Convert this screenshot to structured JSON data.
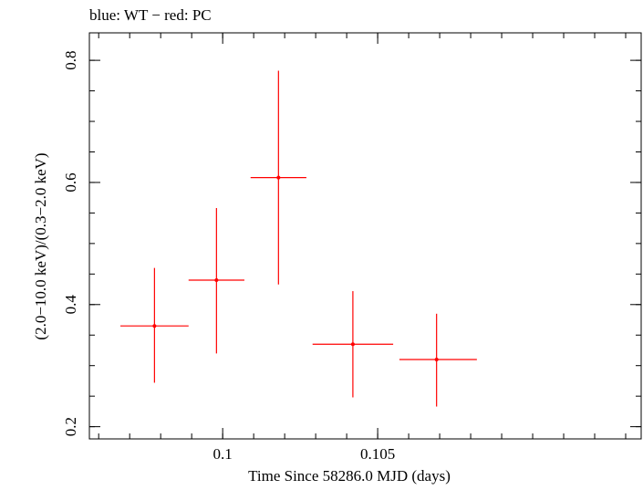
{
  "chart_data": {
    "type": "scatter",
    "title": "blue: WT − red: PC",
    "xlabel": "Time Since 58286.0 MJD (days)",
    "ylabel": "(2.0−10.0 keV)/(0.3−2.0 keV)",
    "xlim": [
      0.0957,
      0.1135
    ],
    "ylim": [
      0.18,
      0.845
    ],
    "x_ticks": [
      {
        "value": 0.1,
        "label": "0.1"
      },
      {
        "value": 0.105,
        "label": "0.105"
      }
    ],
    "y_ticks": [
      {
        "value": 0.2,
        "label": "0.2"
      },
      {
        "value": 0.4,
        "label": "0.4"
      },
      {
        "value": 0.6,
        "label": "0.6"
      },
      {
        "value": 0.8,
        "label": "0.8"
      }
    ],
    "x_minor_step": 0.001,
    "y_minor_step": 0.05,
    "grid": false,
    "series": [
      {
        "name": "PC",
        "color": "#ff0000",
        "points": [
          {
            "x": 0.0978,
            "xerr_lo": 0.0011,
            "xerr_hi": 0.0011,
            "y": 0.365,
            "yerr_lo": 0.093,
            "yerr_hi": 0.095
          },
          {
            "x": 0.0998,
            "xerr_lo": 0.0009,
            "xerr_hi": 0.0009,
            "y": 0.44,
            "yerr_lo": 0.12,
            "yerr_hi": 0.118
          },
          {
            "x": 0.1018,
            "xerr_lo": 0.0009,
            "xerr_hi": 0.0009,
            "y": 0.608,
            "yerr_lo": 0.175,
            "yerr_hi": 0.175
          },
          {
            "x": 0.1042,
            "xerr_lo": 0.0013,
            "xerr_hi": 0.0013,
            "y": 0.335,
            "yerr_lo": 0.087,
            "yerr_hi": 0.087
          },
          {
            "x": 0.1069,
            "xerr_lo": 0.0012,
            "xerr_hi": 0.0013,
            "y": 0.31,
            "yerr_lo": 0.077,
            "yerr_hi": 0.075
          }
        ]
      }
    ]
  }
}
